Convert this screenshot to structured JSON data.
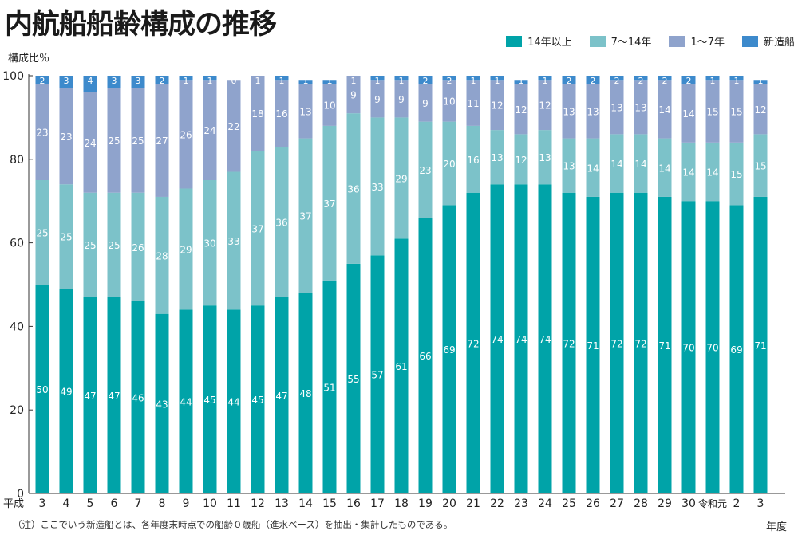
{
  "title": "内航船船齢構成の推移",
  "colors": {
    "s14plus": "#00a3a8",
    "s7to14": "#7cc2c9",
    "s1to7": "#8fa3cc",
    "snew": "#3d8acc"
  },
  "chart_data": {
    "type": "bar",
    "stacked": true,
    "title": "内航船船齢構成の推移",
    "ylabel": "構成比％",
    "xlabel": "年度",
    "ylim": [
      0,
      100
    ],
    "yticks": [
      0,
      20,
      40,
      60,
      80,
      100
    ],
    "era_label": "平成",
    "categories": [
      "3",
      "4",
      "5",
      "6",
      "7",
      "8",
      "9",
      "10",
      "11",
      "12",
      "13",
      "14",
      "15",
      "16",
      "17",
      "18",
      "19",
      "20",
      "21",
      "22",
      "23",
      "24",
      "25",
      "26",
      "27",
      "28",
      "29",
      "30",
      "令和元",
      "2",
      "3"
    ],
    "series": [
      {
        "name": "14年以上",
        "color_key": "s14plus",
        "label_color": "#ffffff",
        "values": [
          50,
          49,
          47,
          47,
          46,
          43,
          44,
          45,
          44,
          45,
          47,
          48,
          51,
          55,
          57,
          61,
          66,
          69,
          72,
          74,
          74,
          74,
          72,
          71,
          72,
          72,
          71,
          70,
          70,
          69,
          71
        ]
      },
      {
        "name": "7〜14年",
        "color_key": "s7to14",
        "label_color": "#ffffff",
        "values": [
          25,
          25,
          25,
          25,
          26,
          28,
          29,
          30,
          33,
          37,
          36,
          37,
          37,
          36,
          33,
          29,
          23,
          20,
          16,
          13,
          12,
          13,
          13,
          14,
          14,
          14,
          14,
          14,
          14,
          15,
          15
        ]
      },
      {
        "name": "1〜7年",
        "color_key": "s1to7",
        "label_color": "#ffffff",
        "values": [
          23,
          23,
          24,
          25,
          25,
          27,
          26,
          24,
          22,
          18,
          16,
          13,
          10,
          9,
          9,
          9,
          9,
          10,
          11,
          12,
          12,
          12,
          13,
          13,
          13,
          13,
          14,
          14,
          15,
          15,
          12
        ]
      },
      {
        "name": "新造船",
        "color_key": "snew",
        "label_color": "#ffffff",
        "values": [
          2,
          3,
          4,
          3,
          3,
          2,
          1,
          1,
          0,
          1,
          1,
          1,
          1,
          1,
          1,
          1,
          2,
          2,
          1,
          1,
          1,
          1,
          2,
          2,
          2,
          2,
          2,
          2,
          1,
          1,
          1
        ]
      }
    ]
  },
  "note": "（注）ここでいう新造船とは、各年度末時点での船齢０歳船（進水ベース）を抽出・集計したものである。"
}
